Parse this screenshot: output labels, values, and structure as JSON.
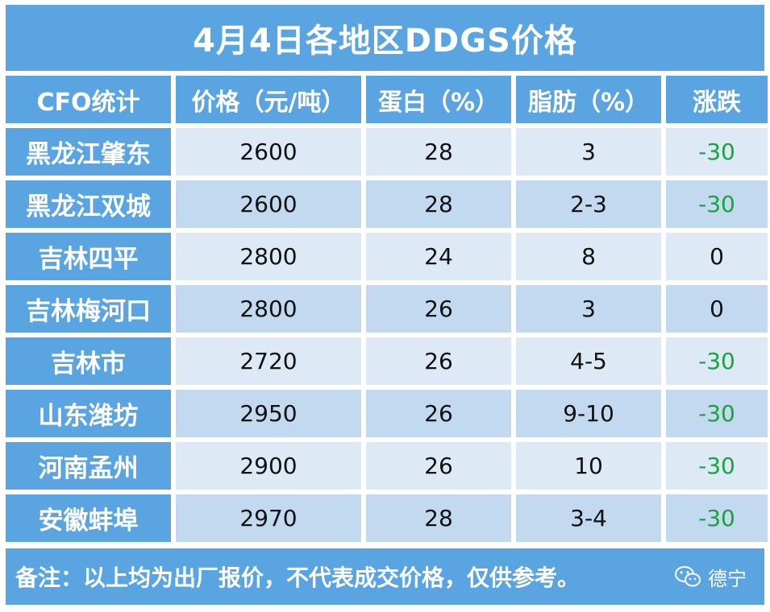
{
  "title": "4月4日各地区DDGS价格",
  "headers": [
    "CFO统计",
    "价格（元/吨）",
    "蛋白（%）",
    "脂肪（%）",
    "涨跌"
  ],
  "rows": [
    {
      "region": "黑龙江肇东",
      "price": "2600",
      "protein": "28",
      "fat": "3",
      "change": "-30"
    },
    {
      "region": "黑龙江双城",
      "price": "2600",
      "protein": "28",
      "fat": "2-3",
      "change": "-30"
    },
    {
      "region": "吉林四平",
      "price": "2800",
      "protein": "24",
      "fat": "8",
      "change": "0"
    },
    {
      "region": "吉林梅河口",
      "price": "2800",
      "protein": "26",
      "fat": "3",
      "change": "0"
    },
    {
      "region": "吉林市",
      "price": "2720",
      "protein": "26",
      "fat": "4-5",
      "change": "-30"
    },
    {
      "region": "山东潍坊",
      "price": "2950",
      "protein": "26",
      "fat": "9-10",
      "change": "-30"
    },
    {
      "region": "河南孟州",
      "price": "2900",
      "protein": "26",
      "fat": "10",
      "change": "-30"
    },
    {
      "region": "安徽蚌埠",
      "price": "2970",
      "protein": "28",
      "fat": "3-4",
      "change": "-30"
    }
  ],
  "note": "备注：以上均为出厂报价，不代表成交价格，仅供参考。",
  "watermark": {
    "text": "德宁",
    "icon": "wechat-icon"
  },
  "colors": {
    "header_bg": "#5ba4e2",
    "row_light": "#dde9f5",
    "row_dark": "#c2d9ef",
    "decline": "#1aa33f"
  }
}
